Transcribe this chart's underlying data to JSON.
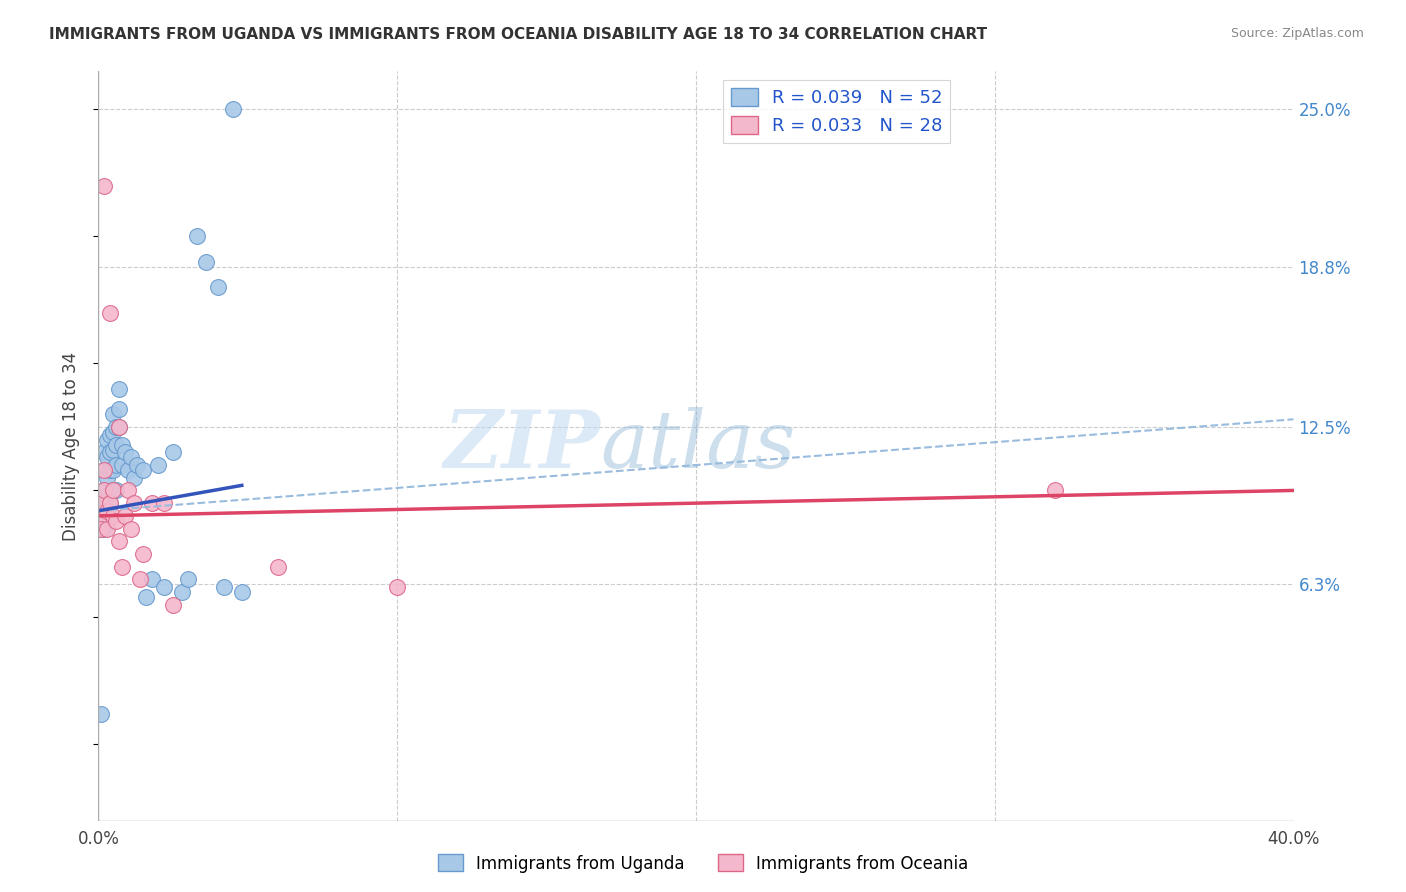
{
  "title": "IMMIGRANTS FROM UGANDA VS IMMIGRANTS FROM OCEANIA DISABILITY AGE 18 TO 34 CORRELATION CHART",
  "source": "Source: ZipAtlas.com",
  "ylabel": "Disability Age 18 to 34",
  "xmin": 0.0,
  "xmax": 0.4,
  "ymin": -0.03,
  "ymax": 0.265,
  "yticks": [
    0.063,
    0.125,
    0.188,
    0.25
  ],
  "ytick_labels": [
    "6.3%",
    "12.5%",
    "18.8%",
    "25.0%"
  ],
  "xticks": [
    0.0,
    0.1,
    0.2,
    0.3,
    0.4
  ],
  "xtick_labels": [
    "0.0%",
    "",
    "",
    "",
    "40.0%"
  ],
  "legend_r1": "R = 0.039",
  "legend_n1": "N = 52",
  "legend_r2": "R = 0.033",
  "legend_n2": "N = 28",
  "watermark_zip": "ZIP",
  "watermark_atlas": "atlas",
  "uganda_color": "#a8c8e8",
  "oceania_color": "#f4b8cc",
  "uganda_edge_color": "#6699cc",
  "oceania_edge_color": "#dd6688",
  "uganda_line_color": "#3355bb",
  "oceania_line_color": "#dd4466",
  "dashed_line_color": "#99bbdd",
  "background_color": "#ffffff",
  "grid_color": "#cccccc",
  "uganda_x": [
    0.001,
    0.001,
    0.001,
    0.001,
    0.002,
    0.002,
    0.002,
    0.002,
    0.002,
    0.003,
    0.003,
    0.003,
    0.003,
    0.003,
    0.004,
    0.004,
    0.004,
    0.004,
    0.005,
    0.005,
    0.005,
    0.005,
    0.005,
    0.006,
    0.006,
    0.006,
    0.006,
    0.007,
    0.007,
    0.007,
    0.008,
    0.008,
    0.009,
    0.01,
    0.011,
    0.012,
    0.013,
    0.015,
    0.016,
    0.018,
    0.02,
    0.022,
    0.025,
    0.028,
    0.03,
    0.033,
    0.036,
    0.04,
    0.042,
    0.045,
    0.048,
    0.001
  ],
  "uganda_y": [
    0.09,
    0.085,
    0.093,
    0.097,
    0.115,
    0.108,
    0.1,
    0.092,
    0.085,
    0.12,
    0.113,
    0.105,
    0.098,
    0.088,
    0.122,
    0.115,
    0.108,
    0.095,
    0.13,
    0.123,
    0.116,
    0.108,
    0.1,
    0.125,
    0.118,
    0.11,
    0.1,
    0.14,
    0.132,
    0.125,
    0.118,
    0.11,
    0.115,
    0.108,
    0.113,
    0.105,
    0.11,
    0.108,
    0.058,
    0.065,
    0.11,
    0.062,
    0.115,
    0.06,
    0.065,
    0.2,
    0.19,
    0.18,
    0.062,
    0.25,
    0.06,
    0.012
  ],
  "oceania_x": [
    0.001,
    0.001,
    0.001,
    0.002,
    0.002,
    0.002,
    0.003,
    0.003,
    0.004,
    0.004,
    0.005,
    0.005,
    0.006,
    0.007,
    0.007,
    0.008,
    0.009,
    0.01,
    0.011,
    0.012,
    0.014,
    0.015,
    0.018,
    0.022,
    0.025,
    0.06,
    0.1,
    0.32
  ],
  "oceania_y": [
    0.09,
    0.085,
    0.095,
    0.22,
    0.1,
    0.108,
    0.092,
    0.085,
    0.17,
    0.095,
    0.1,
    0.09,
    0.088,
    0.08,
    0.125,
    0.07,
    0.09,
    0.1,
    0.085,
    0.095,
    0.065,
    0.075,
    0.095,
    0.095,
    0.055,
    0.07,
    0.062,
    0.1
  ],
  "uganda_line_x": [
    0.0,
    0.048
  ],
  "uganda_line_y": [
    0.092,
    0.102
  ],
  "dashed_line_x": [
    0.0,
    0.4
  ],
  "dashed_line_y": [
    0.092,
    0.128
  ],
  "oceania_line_x": [
    0.0,
    0.4
  ],
  "oceania_line_y": [
    0.09,
    0.1
  ]
}
